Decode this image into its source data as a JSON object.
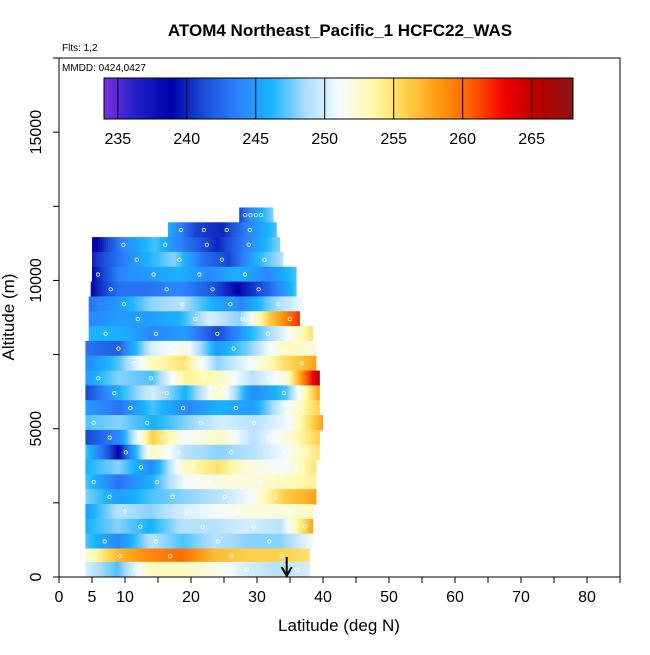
{
  "chart_data": {
    "type": "heatmap",
    "title": "ATOM4 Northeast_Pacific_1 HCFC22_WAS",
    "flights_label": "Flts: 1,2",
    "dates_label": "MMDD: 0424,0427",
    "xlabel": "Latitude (deg N)",
    "ylabel": "Altitude (m)",
    "xlim": [
      0,
      85
    ],
    "ylim": [
      0,
      17500
    ],
    "x_ticks": [
      0,
      5,
      10,
      20,
      30,
      40,
      50,
      60,
      70,
      80
    ],
    "y_ticks": [
      0,
      5000,
      10000,
      15000
    ],
    "colorbar": {
      "range": [
        234,
        268
      ],
      "ticks": [
        235,
        240,
        245,
        250,
        255,
        260,
        265
      ],
      "colors": [
        "#7b2fe0",
        "#1f1fc8",
        "#0000a8",
        "#1a4fd8",
        "#2c82ff",
        "#19b4ff",
        "#a9dcff",
        "#f4fbff",
        "#fffbb0",
        "#ffd24d",
        "#ff9a10",
        "#ff5a00",
        "#f00000",
        "#b40000",
        "#8c1414"
      ]
    },
    "marker": {
      "latitude": 34.5,
      "label": "arrow"
    },
    "x_data": [
      8,
      12,
      16,
      20,
      24,
      28,
      32,
      36
    ],
    "layers": [
      {
        "altitude": 12200,
        "lat_start": 27.3,
        "lat_end": 32.5,
        "values": [
          241,
          244,
          246,
          248
        ]
      },
      {
        "altitude": 11700,
        "lat_start": 16.5,
        "lat_end": 33.0,
        "values": [
          246,
          241,
          240,
          244,
          247
        ]
      },
      {
        "altitude": 11200,
        "lat_start": 5.0,
        "lat_end": 33.5,
        "values": [
          238,
          244,
          247,
          243,
          240,
          244,
          248
        ]
      },
      {
        "altitude": 10700,
        "lat_start": 5.0,
        "lat_end": 34.0,
        "values": [
          240,
          243,
          246,
          248,
          243,
          241,
          246,
          249
        ]
      },
      {
        "altitude": 10200,
        "lat_start": 5.0,
        "lat_end": 36.0,
        "values": [
          239,
          244,
          245,
          246,
          244,
          246,
          244,
          247
        ]
      },
      {
        "altitude": 9700,
        "lat_start": 4.8,
        "lat_end": 36.0,
        "values": [
          239,
          243,
          243,
          244,
          242,
          239,
          242,
          247
        ]
      },
      {
        "altitude": 9200,
        "lat_start": 4.5,
        "lat_end": 37.0,
        "values": [
          243,
          245,
          248,
          249,
          246,
          244,
          248,
          251
        ]
      },
      {
        "altitude": 8700,
        "lat_start": 4.5,
        "lat_end": 36.5,
        "values": [
          244,
          245,
          245,
          246,
          250,
          248,
          256,
          262
        ]
      },
      {
        "altitude": 8200,
        "lat_start": 4.5,
        "lat_end": 38.5,
        "values": [
          246,
          246,
          244,
          245,
          241,
          246,
          250,
          255
        ]
      },
      {
        "altitude": 7700,
        "lat_start": 4.0,
        "lat_end": 39.0,
        "values": [
          243,
          242,
          250,
          252,
          245,
          248,
          253,
          252
        ]
      },
      {
        "altitude": 7200,
        "lat_start": 4.0,
        "lat_end": 39.0,
        "values": [
          244,
          247,
          253,
          255,
          248,
          251,
          255,
          258
        ]
      },
      {
        "altitude": 6700,
        "lat_start": 4.0,
        "lat_end": 39.5,
        "values": [
          245,
          248,
          247,
          254,
          253,
          249,
          252,
          266
        ]
      },
      {
        "altitude": 6200,
        "lat_start": 4.0,
        "lat_end": 39.5,
        "values": [
          241,
          246,
          250,
          246,
          253,
          244,
          247,
          258
        ]
      },
      {
        "altitude": 5700,
        "lat_start": 4.0,
        "lat_end": 39.5,
        "values": [
          245,
          243,
          247,
          244,
          246,
          245,
          251,
          256
        ]
      },
      {
        "altitude": 5200,
        "lat_start": 4.0,
        "lat_end": 40.0,
        "values": [
          247,
          248,
          246,
          248,
          250,
          249,
          251,
          258
        ]
      },
      {
        "altitude": 4700,
        "lat_start": 4.0,
        "lat_end": 39.5,
        "values": [
          241,
          244,
          256,
          251,
          253,
          249,
          252,
          256
        ]
      },
      {
        "altitude": 4200,
        "lat_start": 4.0,
        "lat_end": 39.5,
        "values": [
          247,
          239,
          253,
          249,
          248,
          249,
          251,
          255
        ]
      },
      {
        "altitude": 3700,
        "lat_start": 4.0,
        "lat_end": 39.0,
        "values": [
          246,
          248,
          244,
          253,
          255,
          252,
          251,
          255
        ]
      },
      {
        "altitude": 3200,
        "lat_start": 4.0,
        "lat_end": 39.0,
        "values": [
          247,
          243,
          246,
          251,
          252,
          252,
          253,
          254
        ]
      },
      {
        "altitude": 2700,
        "lat_start": 4.0,
        "lat_end": 39.0,
        "values": [
          248,
          245,
          247,
          248,
          249,
          251,
          256,
          258
        ]
      },
      {
        "altitude": 2200,
        "lat_start": 4.0,
        "lat_end": 38.5,
        "values": [
          245,
          249,
          248,
          250,
          251,
          252,
          252,
          253
        ]
      },
      {
        "altitude": 1700,
        "lat_start": 4.0,
        "lat_end": 38.5,
        "values": [
          246,
          248,
          246,
          249,
          249,
          250,
          249,
          258
        ]
      },
      {
        "altitude": 1200,
        "lat_start": 4.0,
        "lat_end": 38.5,
        "values": [
          247,
          244,
          249,
          247,
          249,
          248,
          248,
          251
        ]
      },
      {
        "altitude": 700,
        "lat_start": 4.0,
        "lat_end": 38.0,
        "values": [
          252,
          257,
          259,
          260,
          257,
          256,
          256,
          255
        ]
      },
      {
        "altitude": 250,
        "lat_start": 4.0,
        "lat_end": 38.0,
        "values": [
          250,
          247,
          253,
          253,
          252,
          250,
          249,
          250
        ]
      }
    ],
    "grid": false,
    "legend": "top"
  }
}
